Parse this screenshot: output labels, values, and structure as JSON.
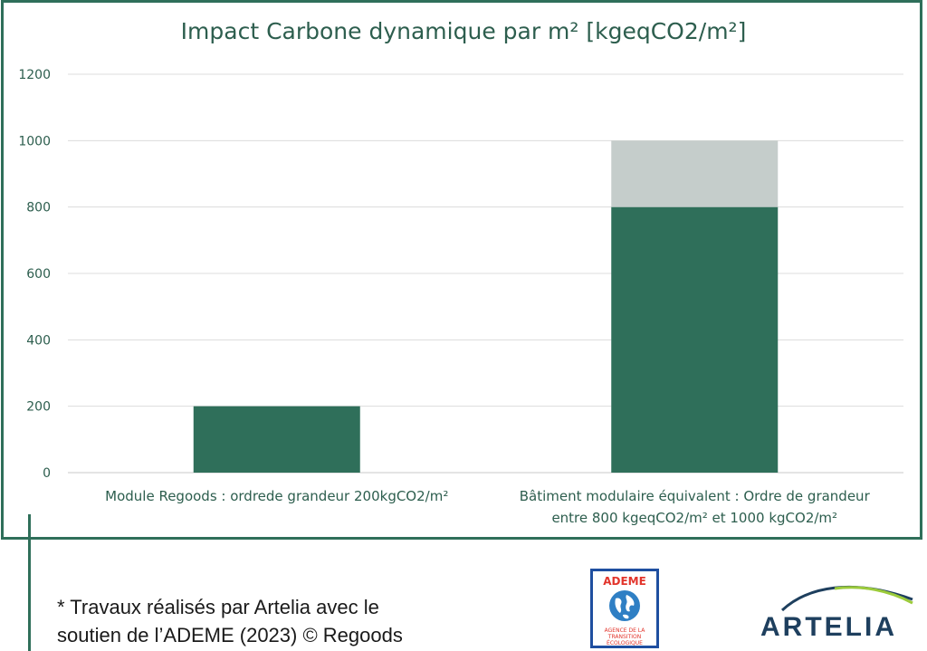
{
  "chart_data": {
    "type": "bar",
    "title": "Impact Carbone dynamique par m² [kgeqCO2/m²]",
    "xlabel": "",
    "ylabel": "",
    "ylim": [
      0,
      1200
    ],
    "yticks": [
      "0",
      "200",
      "400",
      "600",
      "800",
      "1000",
      "1200"
    ],
    "grid": true,
    "stacked": true,
    "categories": [
      [
        "Module Regoods : ordrede grandeur 200kgCO2/m²"
      ],
      [
        "Bâtiment modulaire équivalent : Ordre de grandeur",
        "entre 800 kgeqCO2/m² et 1000 kgCO2/m²"
      ]
    ],
    "series": [
      {
        "values": [
          200,
          800
        ],
        "color": "#2f6f5a"
      },
      {
        "values": [
          0,
          200
        ],
        "color": "#c5cdcb"
      }
    ]
  },
  "footnote": {
    "lines": [
      "* Travaux réalisés par Artelia avec le",
      "  soutien de l’ADEME (2023) © Regoods"
    ]
  },
  "logos": {
    "ademe": {
      "name": "ADEME",
      "subtitle": [
        "AGENCE DE LA",
        "TRANSITION",
        "ÉCOLOGIQUE"
      ]
    },
    "artelia": {
      "name": "ARTELIA"
    }
  },
  "colors": {
    "frame": "#2f6f5a",
    "bar_primary": "#2f6f5a",
    "bar_secondary": "#c5cdcb",
    "text": "#2d5e4e"
  }
}
